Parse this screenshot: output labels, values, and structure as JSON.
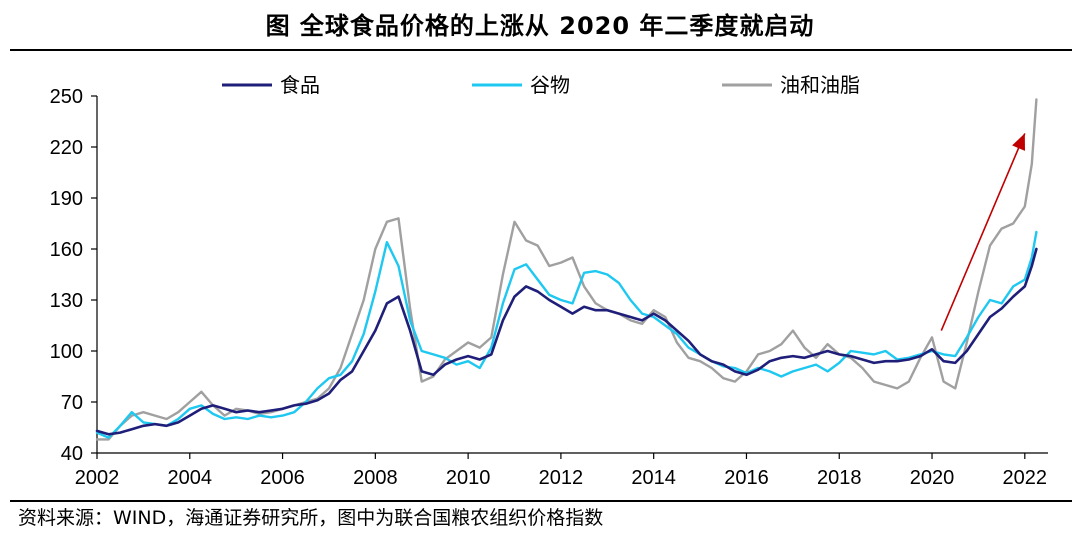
{
  "title": "图  全球食品价格的上涨从 2020 年二季度就启动",
  "source": "资料来源：WIND，海通证券研究所，图中为联合国粮农组织价格指数",
  "chart_data": {
    "type": "line",
    "title": "图  全球食品价格的上涨从 2020 年二季度就启动",
    "ylim": [
      40,
      250
    ],
    "yticks": [
      40,
      70,
      100,
      130,
      160,
      190,
      220,
      250
    ],
    "xlim": [
      2002,
      2022.5
    ],
    "xticks": [
      2002,
      2004,
      2006,
      2008,
      2010,
      2012,
      2014,
      2016,
      2018,
      2020,
      2022
    ],
    "legend_position": "top-center",
    "grid": false,
    "annotation": {
      "type": "arrow",
      "color": "#c00000",
      "from": [
        2020.2,
        112
      ],
      "to": [
        2022.0,
        228
      ]
    },
    "series": [
      {
        "name": "食品",
        "color": "#1f1f7a",
        "points": [
          [
            2002.0,
            53
          ],
          [
            2002.25,
            51
          ],
          [
            2002.5,
            52
          ],
          [
            2002.75,
            54
          ],
          [
            2003.0,
            56
          ],
          [
            2003.25,
            57
          ],
          [
            2003.5,
            56
          ],
          [
            2003.75,
            58
          ],
          [
            2004.0,
            62
          ],
          [
            2004.25,
            66
          ],
          [
            2004.5,
            68
          ],
          [
            2004.75,
            66
          ],
          [
            2005.0,
            64
          ],
          [
            2005.25,
            65
          ],
          [
            2005.5,
            64
          ],
          [
            2005.75,
            65
          ],
          [
            2006.0,
            66
          ],
          [
            2006.25,
            68
          ],
          [
            2006.5,
            69
          ],
          [
            2006.75,
            71
          ],
          [
            2007.0,
            75
          ],
          [
            2007.25,
            83
          ],
          [
            2007.5,
            88
          ],
          [
            2007.75,
            100
          ],
          [
            2008.0,
            112
          ],
          [
            2008.25,
            128
          ],
          [
            2008.5,
            132
          ],
          [
            2008.75,
            112
          ],
          [
            2009.0,
            88
          ],
          [
            2009.25,
            86
          ],
          [
            2009.5,
            92
          ],
          [
            2009.75,
            95
          ],
          [
            2010.0,
            97
          ],
          [
            2010.25,
            95
          ],
          [
            2010.5,
            98
          ],
          [
            2010.75,
            118
          ],
          [
            2011.0,
            132
          ],
          [
            2011.25,
            138
          ],
          [
            2011.5,
            135
          ],
          [
            2011.75,
            130
          ],
          [
            2012.0,
            126
          ],
          [
            2012.25,
            122
          ],
          [
            2012.5,
            126
          ],
          [
            2012.75,
            124
          ],
          [
            2013.0,
            124
          ],
          [
            2013.25,
            122
          ],
          [
            2013.5,
            120
          ],
          [
            2013.75,
            118
          ],
          [
            2014.0,
            122
          ],
          [
            2014.25,
            118
          ],
          [
            2014.5,
            112
          ],
          [
            2014.75,
            106
          ],
          [
            2015.0,
            98
          ],
          [
            2015.25,
            94
          ],
          [
            2015.5,
            92
          ],
          [
            2015.75,
            88
          ],
          [
            2016.0,
            86
          ],
          [
            2016.25,
            89
          ],
          [
            2016.5,
            94
          ],
          [
            2016.75,
            96
          ],
          [
            2017.0,
            97
          ],
          [
            2017.25,
            96
          ],
          [
            2017.5,
            98
          ],
          [
            2017.75,
            100
          ],
          [
            2018.0,
            98
          ],
          [
            2018.25,
            97
          ],
          [
            2018.5,
            95
          ],
          [
            2018.75,
            93
          ],
          [
            2019.0,
            94
          ],
          [
            2019.25,
            94
          ],
          [
            2019.5,
            95
          ],
          [
            2019.75,
            97
          ],
          [
            2020.0,
            101
          ],
          [
            2020.25,
            94
          ],
          [
            2020.5,
            93
          ],
          [
            2020.75,
            100
          ],
          [
            2021.0,
            110
          ],
          [
            2021.25,
            120
          ],
          [
            2021.5,
            125
          ],
          [
            2021.75,
            132
          ],
          [
            2022.0,
            138
          ],
          [
            2022.15,
            150
          ],
          [
            2022.25,
            160
          ]
        ]
      },
      {
        "name": "谷物",
        "color": "#1ec8f0",
        "points": [
          [
            2002.0,
            52
          ],
          [
            2002.25,
            49
          ],
          [
            2002.5,
            56
          ],
          [
            2002.75,
            64
          ],
          [
            2003.0,
            58
          ],
          [
            2003.25,
            57
          ],
          [
            2003.5,
            56
          ],
          [
            2003.75,
            60
          ],
          [
            2004.0,
            66
          ],
          [
            2004.25,
            68
          ],
          [
            2004.5,
            63
          ],
          [
            2004.75,
            60
          ],
          [
            2005.0,
            61
          ],
          [
            2005.25,
            60
          ],
          [
            2005.5,
            62
          ],
          [
            2005.75,
            61
          ],
          [
            2006.0,
            62
          ],
          [
            2006.25,
            64
          ],
          [
            2006.5,
            70
          ],
          [
            2006.75,
            78
          ],
          [
            2007.0,
            84
          ],
          [
            2007.25,
            86
          ],
          [
            2007.5,
            94
          ],
          [
            2007.75,
            110
          ],
          [
            2008.0,
            135
          ],
          [
            2008.25,
            164
          ],
          [
            2008.5,
            150
          ],
          [
            2008.75,
            118
          ],
          [
            2009.0,
            100
          ],
          [
            2009.25,
            98
          ],
          [
            2009.5,
            96
          ],
          [
            2009.75,
            92
          ],
          [
            2010.0,
            94
          ],
          [
            2010.25,
            90
          ],
          [
            2010.5,
            102
          ],
          [
            2010.75,
            128
          ],
          [
            2011.0,
            148
          ],
          [
            2011.25,
            151
          ],
          [
            2011.5,
            142
          ],
          [
            2011.75,
            133
          ],
          [
            2012.0,
            130
          ],
          [
            2012.25,
            128
          ],
          [
            2012.5,
            146
          ],
          [
            2012.75,
            147
          ],
          [
            2013.0,
            145
          ],
          [
            2013.25,
            140
          ],
          [
            2013.5,
            130
          ],
          [
            2013.75,
            122
          ],
          [
            2014.0,
            120
          ],
          [
            2014.25,
            115
          ],
          [
            2014.5,
            110
          ],
          [
            2014.75,
            102
          ],
          [
            2015.0,
            98
          ],
          [
            2015.25,
            94
          ],
          [
            2015.5,
            91
          ],
          [
            2015.75,
            90
          ],
          [
            2016.0,
            87
          ],
          [
            2016.25,
            90
          ],
          [
            2016.5,
            88
          ],
          [
            2016.75,
            85
          ],
          [
            2017.0,
            88
          ],
          [
            2017.25,
            90
          ],
          [
            2017.5,
            92
          ],
          [
            2017.75,
            88
          ],
          [
            2018.0,
            93
          ],
          [
            2018.25,
            100
          ],
          [
            2018.5,
            99
          ],
          [
            2018.75,
            98
          ],
          [
            2019.0,
            100
          ],
          [
            2019.25,
            95
          ],
          [
            2019.5,
            96
          ],
          [
            2019.75,
            98
          ],
          [
            2020.0,
            100
          ],
          [
            2020.25,
            98
          ],
          [
            2020.5,
            97
          ],
          [
            2020.75,
            108
          ],
          [
            2021.0,
            120
          ],
          [
            2021.25,
            130
          ],
          [
            2021.5,
            128
          ],
          [
            2021.75,
            138
          ],
          [
            2022.0,
            142
          ],
          [
            2022.15,
            155
          ],
          [
            2022.25,
            170
          ]
        ]
      },
      {
        "name": "油和油脂",
        "color": "#a0a0a0",
        "points": [
          [
            2002.0,
            48
          ],
          [
            2002.25,
            48
          ],
          [
            2002.5,
            56
          ],
          [
            2002.75,
            62
          ],
          [
            2003.0,
            64
          ],
          [
            2003.25,
            62
          ],
          [
            2003.5,
            60
          ],
          [
            2003.75,
            64
          ],
          [
            2004.0,
            70
          ],
          [
            2004.25,
            76
          ],
          [
            2004.5,
            68
          ],
          [
            2004.75,
            62
          ],
          [
            2005.0,
            66
          ],
          [
            2005.25,
            65
          ],
          [
            2005.5,
            63
          ],
          [
            2005.75,
            64
          ],
          [
            2006.0,
            66
          ],
          [
            2006.25,
            68
          ],
          [
            2006.5,
            70
          ],
          [
            2006.75,
            72
          ],
          [
            2007.0,
            78
          ],
          [
            2007.25,
            90
          ],
          [
            2007.5,
            110
          ],
          [
            2007.75,
            130
          ],
          [
            2008.0,
            160
          ],
          [
            2008.25,
            176
          ],
          [
            2008.5,
            178
          ],
          [
            2008.75,
            125
          ],
          [
            2009.0,
            82
          ],
          [
            2009.25,
            85
          ],
          [
            2009.5,
            95
          ],
          [
            2009.75,
            100
          ],
          [
            2010.0,
            105
          ],
          [
            2010.25,
            102
          ],
          [
            2010.5,
            108
          ],
          [
            2010.75,
            145
          ],
          [
            2011.0,
            176
          ],
          [
            2011.25,
            165
          ],
          [
            2011.5,
            162
          ],
          [
            2011.75,
            150
          ],
          [
            2012.0,
            152
          ],
          [
            2012.25,
            155
          ],
          [
            2012.5,
            138
          ],
          [
            2012.75,
            128
          ],
          [
            2013.0,
            124
          ],
          [
            2013.25,
            122
          ],
          [
            2013.5,
            118
          ],
          [
            2013.75,
            116
          ],
          [
            2014.0,
            124
          ],
          [
            2014.25,
            120
          ],
          [
            2014.5,
            105
          ],
          [
            2014.75,
            96
          ],
          [
            2015.0,
            94
          ],
          [
            2015.25,
            90
          ],
          [
            2015.5,
            84
          ],
          [
            2015.75,
            82
          ],
          [
            2016.0,
            88
          ],
          [
            2016.25,
            98
          ],
          [
            2016.5,
            100
          ],
          [
            2016.75,
            104
          ],
          [
            2017.0,
            112
          ],
          [
            2017.25,
            102
          ],
          [
            2017.5,
            96
          ],
          [
            2017.75,
            104
          ],
          [
            2018.0,
            98
          ],
          [
            2018.25,
            96
          ],
          [
            2018.5,
            90
          ],
          [
            2018.75,
            82
          ],
          [
            2019.0,
            80
          ],
          [
            2019.25,
            78
          ],
          [
            2019.5,
            82
          ],
          [
            2019.75,
            96
          ],
          [
            2020.0,
            108
          ],
          [
            2020.25,
            82
          ],
          [
            2020.5,
            78
          ],
          [
            2020.75,
            105
          ],
          [
            2021.0,
            135
          ],
          [
            2021.25,
            162
          ],
          [
            2021.5,
            172
          ],
          [
            2021.75,
            175
          ],
          [
            2022.0,
            185
          ],
          [
            2022.15,
            210
          ],
          [
            2022.25,
            248
          ]
        ]
      }
    ]
  }
}
